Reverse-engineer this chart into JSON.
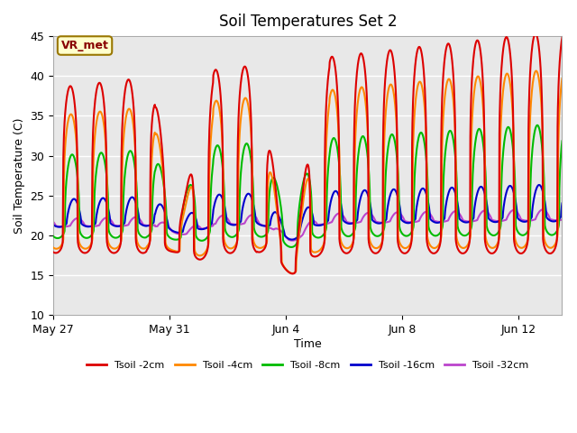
{
  "title": "Soil Temperatures Set 2",
  "xlabel": "Time",
  "ylabel": "Soil Temperature (C)",
  "ylim": [
    10,
    45
  ],
  "yticks": [
    10,
    15,
    20,
    25,
    30,
    35,
    40,
    45
  ],
  "n_days": 17.5,
  "x_tick_positions": [
    0,
    4,
    8,
    12,
    16
  ],
  "x_tick_labels": [
    "May 27",
    "May 31",
    "Jun 4",
    "Jun 8",
    "Jun 12"
  ],
  "legend_labels": [
    "Tsoil -2cm",
    "Tsoil -4cm",
    "Tsoil -8cm",
    "Tsoil -16cm",
    "Tsoil -32cm"
  ],
  "legend_colors": [
    "#dd0000",
    "#ff8800",
    "#00bb00",
    "#0000cc",
    "#bb44cc"
  ],
  "annotation_text": "VR_met",
  "annotation_bg": "#ffffcc",
  "annotation_border": "#997700",
  "annotation_text_color": "#880000",
  "plot_bg": "#e8e8e8",
  "fig_bg": "#ffffff",
  "grid_color": "#ffffff",
  "line_width": 1.5
}
